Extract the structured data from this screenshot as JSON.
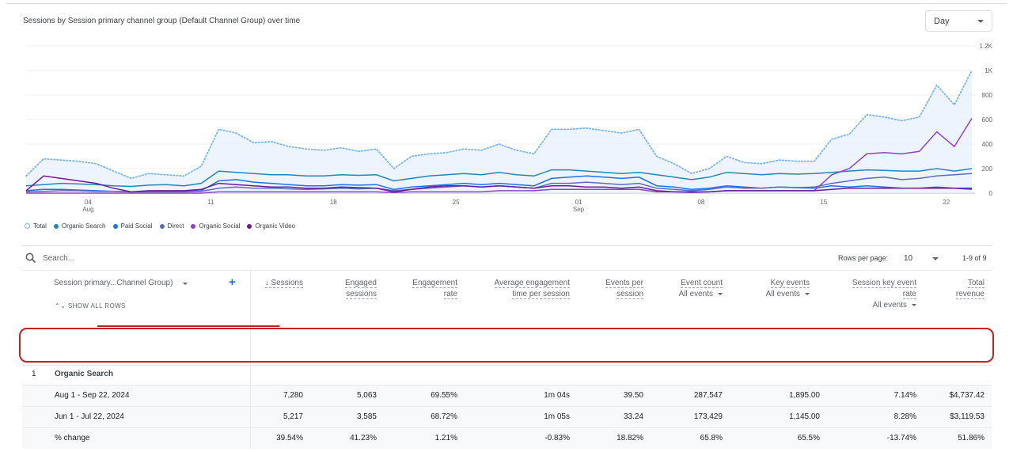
{
  "chart": {
    "title": "Sessions by Session primary channel group (Default Channel Group) over time",
    "granularity": "Day",
    "y_ticks": [
      "1.2K",
      "1K",
      "800",
      "600",
      "400",
      "200",
      "0"
    ],
    "x_ticks": [
      {
        "label": "04",
        "sub": "Aug"
      },
      {
        "label": "11",
        "sub": ""
      },
      {
        "label": "18",
        "sub": ""
      },
      {
        "label": "25",
        "sub": ""
      },
      {
        "label": "01",
        "sub": "Sep"
      },
      {
        "label": "08",
        "sub": ""
      },
      {
        "label": "15",
        "sub": ""
      },
      {
        "label": "22",
        "sub": ""
      }
    ],
    "legend": [
      {
        "label": "Total",
        "color": "#7cb6e8",
        "hollow": true
      },
      {
        "label": "Organic Search",
        "color": "#1e88b8"
      },
      {
        "label": "Paid Social",
        "color": "#1a73e8"
      },
      {
        "label": "Direct",
        "color": "#5c6bc0"
      },
      {
        "label": "Organic Social",
        "color": "#8e44c9"
      },
      {
        "label": "Organic Video",
        "color": "#6a1b9a"
      }
    ]
  },
  "chart_data": {
    "type": "line",
    "title": "Sessions by Session primary channel group (Default Channel Group) over time",
    "x_range": [
      "2024-08-01",
      "2024-09-22"
    ],
    "ylim": [
      0,
      1200
    ],
    "grid": true,
    "legend_placement": "bottom-left",
    "series": [
      {
        "name": "Total",
        "style": "dotted-area",
        "color": "#7cb6e8",
        "values": [
          140,
          280,
          270,
          260,
          240,
          180,
          120,
          160,
          150,
          140,
          220,
          520,
          490,
          410,
          420,
          380,
          360,
          350,
          370,
          340,
          360,
          200,
          300,
          320,
          330,
          360,
          350,
          400,
          350,
          320,
          520,
          520,
          530,
          510,
          490,
          520,
          300,
          240,
          160,
          200,
          300,
          250,
          240,
          270,
          260,
          260,
          440,
          480,
          640,
          620,
          590,
          620,
          880,
          720,
          1000
        ]
      },
      {
        "name": "Organic Search",
        "color": "#1e88b8",
        "values": [
          60,
          70,
          80,
          75,
          70,
          60,
          55,
          65,
          70,
          60,
          80,
          180,
          170,
          160,
          150,
          150,
          140,
          140,
          150,
          145,
          150,
          100,
          120,
          140,
          150,
          160,
          150,
          170,
          150,
          140,
          190,
          190,
          180,
          170,
          160,
          170,
          150,
          130,
          110,
          130,
          170,
          160,
          150,
          160,
          155,
          160,
          170,
          180,
          190,
          185,
          180,
          180,
          200,
          180,
          200
        ]
      },
      {
        "name": "Paid Social",
        "color": "#1a73e8",
        "values": [
          20,
          30,
          30,
          25,
          20,
          15,
          10,
          15,
          15,
          15,
          20,
          100,
          110,
          90,
          80,
          70,
          60,
          60,
          70,
          65,
          70,
          30,
          50,
          60,
          70,
          80,
          70,
          80,
          70,
          60,
          120,
          130,
          140,
          130,
          120,
          130,
          60,
          50,
          30,
          40,
          60,
          50,
          40,
          50,
          45,
          40,
          60,
          50,
          60,
          50,
          40,
          40,
          50,
          40,
          30
        ]
      },
      {
        "name": "Direct",
        "color": "#5c6bc0",
        "values": [
          10,
          15,
          20,
          20,
          15,
          15,
          10,
          10,
          10,
          10,
          15,
          40,
          50,
          40,
          40,
          35,
          30,
          35,
          40,
          35,
          40,
          20,
          30,
          40,
          50,
          60,
          50,
          60,
          50,
          40,
          80,
          80,
          90,
          80,
          70,
          80,
          40,
          30,
          20,
          30,
          50,
          40,
          40,
          50,
          45,
          50,
          80,
          100,
          120,
          130,
          110,
          120,
          140,
          150,
          160
        ]
      },
      {
        "name": "Organic Social",
        "color": "#8e44c9",
        "values": [
          0,
          0,
          0,
          0,
          0,
          0,
          0,
          0,
          0,
          0,
          0,
          10,
          10,
          10,
          10,
          10,
          10,
          10,
          10,
          10,
          10,
          5,
          10,
          10,
          10,
          10,
          10,
          20,
          20,
          20,
          30,
          30,
          30,
          30,
          30,
          30,
          10,
          10,
          5,
          10,
          20,
          20,
          20,
          20,
          20,
          20,
          150,
          200,
          320,
          330,
          320,
          340,
          500,
          380,
          610
        ]
      },
      {
        "name": "Organic Video",
        "color": "#6a1b9a",
        "values": [
          20,
          140,
          120,
          100,
          80,
          40,
          10,
          20,
          20,
          20,
          30,
          80,
          70,
          60,
          50,
          50,
          40,
          40,
          50,
          45,
          40,
          10,
          30,
          50,
          60,
          60,
          50,
          60,
          50,
          40,
          60,
          60,
          50,
          50,
          40,
          50,
          20,
          10,
          10,
          10,
          20,
          20,
          20,
          20,
          20,
          20,
          30,
          40,
          40,
          40,
          40,
          40,
          40,
          40,
          40
        ]
      }
    ]
  },
  "table": {
    "search_placeholder": "Search...",
    "rows_per_page_label": "Rows per page:",
    "rows_per_page": "10",
    "range": "1-9 of 9",
    "dimension_header": "Session primary...Channel Group)",
    "show_all_rows": "SHOW ALL ROWS",
    "all_events": "All events",
    "columns": [
      {
        "l1": "↓ Sessions",
        "l2": ""
      },
      {
        "l1": "Engaged",
        "l2": "sessions"
      },
      {
        "l1": "Engagement",
        "l2": "rate"
      },
      {
        "l1": "Average engagement",
        "l2": "time per session"
      },
      {
        "l1": "Events per",
        "l2": "session"
      },
      {
        "l1": "Event count",
        "l2": ""
      },
      {
        "l1": "Key events",
        "l2": ""
      },
      {
        "l1": "Session key event",
        "l2": "rate"
      },
      {
        "l1": "Total",
        "l2": "revenue"
      }
    ],
    "group": {
      "index": "1",
      "name": "Organic Search"
    },
    "rows": [
      {
        "label": "Aug 1 - Sep 22, 2024",
        "values": [
          "7,280",
          "5,063",
          "69.55%",
          "1m 04s",
          "39.50",
          "287,547",
          "1,895.00",
          "7.14%",
          "$4,737.42"
        ]
      },
      {
        "label": "Jun 1 - Jul 22, 2024",
        "values": [
          "5,217",
          "3,585",
          "68.72%",
          "1m 05s",
          "33.24",
          "173,429",
          "1,145.00",
          "8.28%",
          "$3,119.53"
        ]
      },
      {
        "label": "% change",
        "values": [
          "39.54%",
          "41.23%",
          "1.21%",
          "-0.83%",
          "18.82%",
          "65.8%",
          "65.5%",
          "-13.74%",
          "51.86%"
        ]
      }
    ]
  }
}
